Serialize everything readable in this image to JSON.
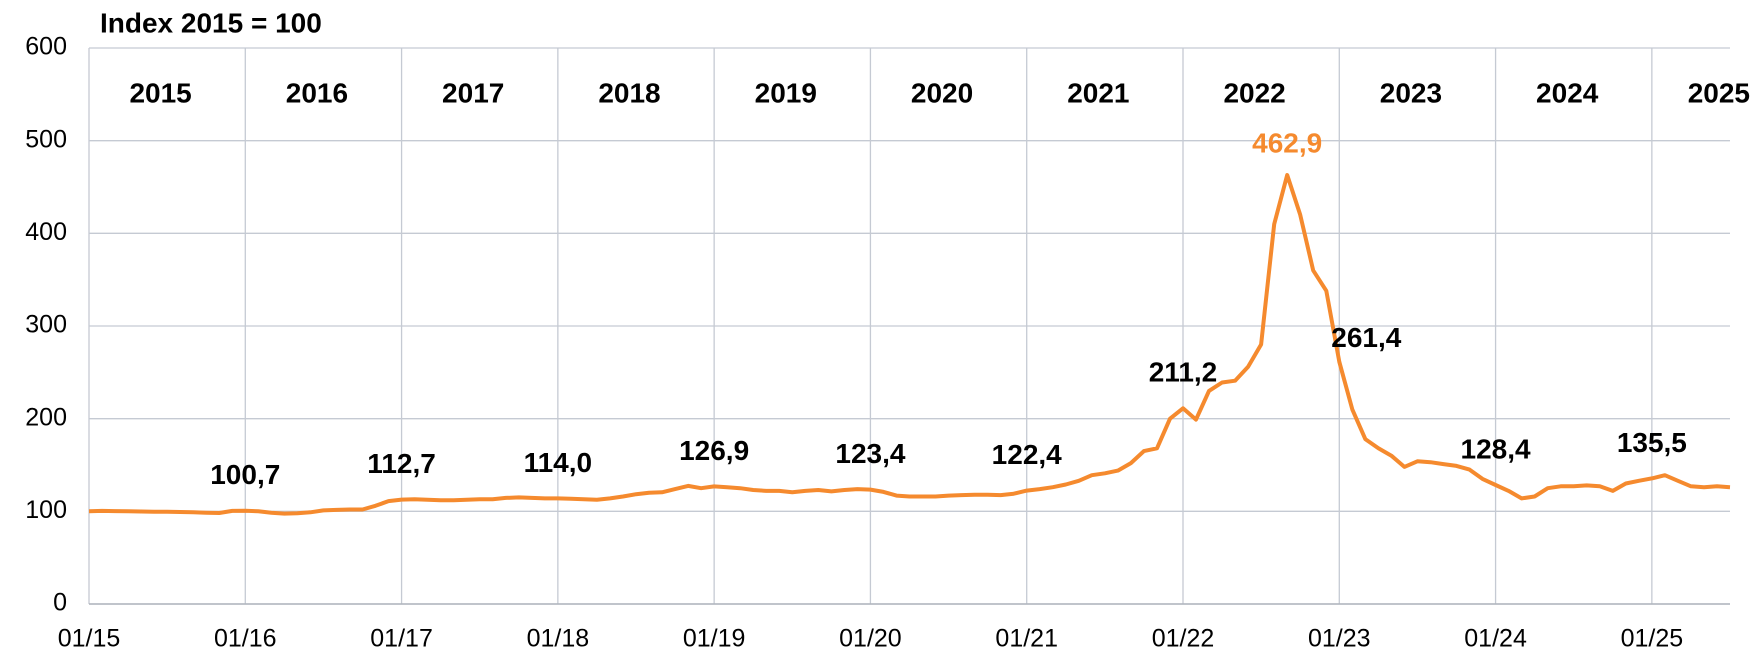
{
  "chart_data": {
    "type": "line",
    "title": "Index 2015 = 100",
    "years": [
      "2015",
      "2016",
      "2017",
      "2018",
      "2019",
      "2020",
      "2021",
      "2022",
      "2023",
      "2024",
      "2025"
    ],
    "categories": [
      "01/15",
      null,
      null,
      null,
      null,
      null,
      null,
      null,
      null,
      null,
      null,
      null,
      "01/16",
      null,
      null,
      null,
      null,
      null,
      null,
      null,
      null,
      null,
      null,
      null,
      "01/17",
      null,
      null,
      null,
      null,
      null,
      null,
      null,
      null,
      null,
      null,
      null,
      "01/18",
      null,
      null,
      null,
      null,
      null,
      null,
      null,
      null,
      null,
      null,
      null,
      "01/19",
      null,
      null,
      null,
      null,
      null,
      null,
      null,
      null,
      null,
      null,
      null,
      "01/20",
      null,
      null,
      null,
      null,
      null,
      null,
      null,
      null,
      null,
      null,
      null,
      "01/21",
      null,
      null,
      null,
      null,
      null,
      null,
      null,
      null,
      null,
      null,
      null,
      "01/22",
      null,
      null,
      null,
      null,
      null,
      null,
      null,
      null,
      null,
      null,
      null,
      "01/23",
      null,
      null,
      null,
      null,
      null,
      null,
      null,
      null,
      null,
      null,
      null,
      "01/24",
      null,
      null,
      null,
      null,
      null,
      null,
      null,
      null,
      null,
      null,
      null,
      "01/25",
      null,
      null,
      null,
      null,
      null,
      null
    ],
    "series": [
      {
        "color": "#f58a2e",
        "values": [
          100,
          100.5,
          100.3,
          100,
          99.8,
          99.6,
          99.5,
          99.3,
          99,
          98.5,
          98.2,
          100.5,
          100.7,
          100,
          98.5,
          97.5,
          98,
          99,
          101,
          101.5,
          102,
          102,
          106,
          111,
          112.7,
          113,
          112.5,
          112,
          112,
          112.5,
          113,
          113,
          114.5,
          115,
          114.5,
          114,
          114.0,
          113.5,
          113,
          112.5,
          114,
          116,
          118.5,
          120,
          120.5,
          124,
          127.5,
          125,
          126.9,
          126,
          125,
          123,
          122,
          122,
          120.5,
          122,
          123,
          121.5,
          123,
          124,
          123.4,
          121,
          117,
          116,
          116,
          116,
          117,
          117.5,
          118,
          118,
          117.5,
          119,
          122.4,
          124,
          126,
          129,
          133,
          139,
          141,
          144,
          152,
          165,
          168,
          200,
          211.2,
          199,
          230,
          239,
          241,
          256,
          280,
          410,
          462.9,
          420,
          360,
          338,
          261.4,
          210,
          178,
          168,
          160,
          148,
          154,
          153,
          151,
          149,
          145,
          135,
          128.4,
          122,
          114,
          116,
          125,
          127,
          127,
          128,
          127,
          122,
          130,
          133,
          135.5,
          139,
          133,
          127,
          126,
          127,
          126
        ],
        "value_labels": [
          null,
          null,
          null,
          null,
          null,
          null,
          null,
          null,
          null,
          null,
          null,
          null,
          "100,7",
          null,
          null,
          null,
          null,
          null,
          null,
          null,
          null,
          null,
          null,
          null,
          "112,7",
          null,
          null,
          null,
          null,
          null,
          null,
          null,
          null,
          null,
          null,
          null,
          "114,0",
          null,
          null,
          null,
          null,
          null,
          null,
          null,
          null,
          null,
          null,
          null,
          "126,9",
          null,
          null,
          null,
          null,
          null,
          null,
          null,
          null,
          null,
          null,
          null,
          "123,4",
          null,
          null,
          null,
          null,
          null,
          null,
          null,
          null,
          null,
          null,
          null,
          "122,4",
          null,
          null,
          null,
          null,
          null,
          null,
          null,
          null,
          null,
          null,
          null,
          "211,2",
          null,
          null,
          null,
          null,
          null,
          null,
          null,
          "462,9",
          null,
          null,
          null,
          "261,4",
          null,
          null,
          null,
          null,
          null,
          null,
          null,
          null,
          null,
          null,
          null,
          "128,4",
          null,
          null,
          null,
          null,
          null,
          null,
          null,
          null,
          null,
          null,
          null,
          "135,5",
          null,
          null,
          null,
          null,
          null,
          null
        ]
      }
    ],
    "ylim": [
      0,
      600
    ],
    "yticks": [
      0,
      100,
      200,
      300,
      400,
      500,
      600
    ],
    "grid": true,
    "highlight_color": "#f58a2e"
  }
}
